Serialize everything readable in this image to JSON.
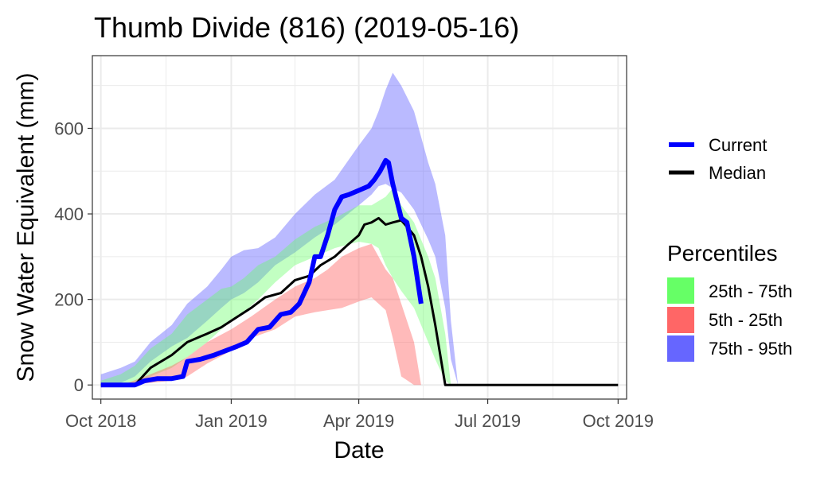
{
  "chart_data": {
    "type": "area",
    "title": "Thumb Divide (816) (2019-05-16)",
    "xlabel": "Date",
    "ylabel": "Snow Water Equivalent (mm)",
    "xlim": [
      "2018-09-25",
      "2019-10-07"
    ],
    "ylim": [
      -33,
      770
    ],
    "x_ticks": [
      {
        "date": "2018-10-01",
        "label": "Oct 2018"
      },
      {
        "date": "2019-01-01",
        "label": "Jan 2019"
      },
      {
        "date": "2019-04-01",
        "label": "Apr 2019"
      },
      {
        "date": "2019-07-01",
        "label": "Jul 2019"
      },
      {
        "date": "2019-10-01",
        "label": "Oct 2019"
      }
    ],
    "y_ticks": [
      0,
      200,
      400,
      600
    ],
    "grid": true,
    "background": "#ffffff",
    "grid_color": "#ebebeb",
    "bands": [
      {
        "name": "75th - 95th",
        "color": "#6666ff",
        "fill_alpha": 0.45,
        "x": [
          "2018-10-01",
          "2018-10-15",
          "2018-10-25",
          "2018-11-05",
          "2018-11-20",
          "2018-12-01",
          "2018-12-15",
          "2018-12-25",
          "2019-01-01",
          "2019-01-10",
          "2019-01-20",
          "2019-02-01",
          "2019-02-15",
          "2019-03-01",
          "2019-03-15",
          "2019-04-01",
          "2019-04-10",
          "2019-04-15",
          "2019-04-20",
          "2019-04-25",
          "2019-05-01",
          "2019-05-10",
          "2019-05-20",
          "2019-05-25",
          "2019-06-01",
          "2019-06-05",
          "2019-06-10"
        ],
        "lower": [
          0,
          5,
          20,
          55,
          90,
          110,
          150,
          180,
          200,
          215,
          240,
          280,
          310,
          345,
          375,
          420,
          445,
          465,
          470,
          460,
          450,
          410,
          340,
          300,
          180,
          60,
          0
        ],
        "upper": [
          25,
          40,
          55,
          100,
          140,
          190,
          230,
          270,
          300,
          315,
          320,
          345,
          400,
          445,
          480,
          560,
          600,
          640,
          690,
          730,
          700,
          640,
          520,
          470,
          350,
          150,
          0
        ]
      },
      {
        "name": "25th - 75th",
        "color": "#66ff66",
        "fill_alpha": 0.4,
        "x": [
          "2018-10-01",
          "2018-10-15",
          "2018-10-25",
          "2018-11-05",
          "2018-11-20",
          "2018-12-01",
          "2018-12-15",
          "2018-12-25",
          "2019-01-01",
          "2019-01-10",
          "2019-01-20",
          "2019-02-01",
          "2019-02-15",
          "2019-03-01",
          "2019-03-15",
          "2019-04-01",
          "2019-04-10",
          "2019-04-15",
          "2019-04-20",
          "2019-04-25",
          "2019-05-01",
          "2019-05-10",
          "2019-05-20",
          "2019-05-25",
          "2019-06-01",
          "2019-06-05"
        ],
        "lower": [
          0,
          0,
          5,
          20,
          40,
          65,
          100,
          130,
          150,
          170,
          200,
          240,
          280,
          300,
          320,
          335,
          330,
          320,
          280,
          250,
          220,
          180,
          100,
          60,
          10,
          0
        ],
        "upper": [
          10,
          25,
          45,
          85,
          120,
          165,
          200,
          225,
          230,
          250,
          280,
          300,
          340,
          370,
          390,
          420,
          420,
          430,
          440,
          460,
          420,
          380,
          300,
          250,
          120,
          0
        ]
      },
      {
        "name": "5th - 25th",
        "color": "#ff6666",
        "fill_alpha": 0.45,
        "x": [
          "2018-10-01",
          "2018-10-20",
          "2018-11-05",
          "2018-11-20",
          "2018-12-01",
          "2018-12-15",
          "2019-01-01",
          "2019-01-15",
          "2019-02-01",
          "2019-02-15",
          "2019-03-01",
          "2019-03-10",
          "2019-03-20",
          "2019-04-01",
          "2019-04-10",
          "2019-04-20",
          "2019-04-25",
          "2019-05-01",
          "2019-05-10",
          "2019-05-15"
        ],
        "lower": [
          0,
          0,
          5,
          10,
          20,
          50,
          80,
          110,
          130,
          160,
          170,
          175,
          180,
          195,
          205,
          175,
          110,
          20,
          0,
          0
        ],
        "upper": [
          0,
          5,
          25,
          45,
          65,
          100,
          130,
          160,
          200,
          230,
          250,
          270,
          300,
          320,
          330,
          270,
          250,
          190,
          100,
          0
        ]
      }
    ],
    "series": [
      {
        "name": "Current",
        "color": "#0000ff",
        "stroke_width": 6,
        "x": [
          "2018-10-01",
          "2018-10-15",
          "2018-10-25",
          "2018-11-01",
          "2018-11-10",
          "2018-11-20",
          "2018-11-28",
          "2018-12-01",
          "2018-12-10",
          "2018-12-20",
          "2018-12-28",
          "2019-01-05",
          "2019-01-12",
          "2019-01-20",
          "2019-01-28",
          "2019-02-05",
          "2019-02-12",
          "2019-02-18",
          "2019-02-25",
          "2019-03-01",
          "2019-03-05",
          "2019-03-10",
          "2019-03-15",
          "2019-03-20",
          "2019-03-25",
          "2019-04-01",
          "2019-04-08",
          "2019-04-12",
          "2019-04-16",
          "2019-04-20",
          "2019-04-22",
          "2019-04-25",
          "2019-05-01",
          "2019-05-05",
          "2019-05-10",
          "2019-05-15"
        ],
        "values": [
          0,
          0,
          0,
          10,
          15,
          15,
          20,
          55,
          60,
          70,
          80,
          90,
          100,
          130,
          135,
          165,
          170,
          190,
          240,
          300,
          300,
          350,
          410,
          440,
          445,
          455,
          465,
          480,
          500,
          525,
          520,
          470,
          390,
          380,
          300,
          190
        ]
      },
      {
        "name": "Median",
        "color": "#000000",
        "stroke_width": 3,
        "x": [
          "2018-10-01",
          "2018-10-15",
          "2018-10-25",
          "2018-11-05",
          "2018-11-20",
          "2018-12-01",
          "2018-12-15",
          "2018-12-25",
          "2019-01-01",
          "2019-01-15",
          "2019-01-25",
          "2019-02-05",
          "2019-02-15",
          "2019-02-25",
          "2019-03-05",
          "2019-03-15",
          "2019-03-25",
          "2019-04-01",
          "2019-04-05",
          "2019-04-10",
          "2019-04-15",
          "2019-04-20",
          "2019-04-25",
          "2019-05-01",
          "2019-05-05",
          "2019-05-10",
          "2019-05-15",
          "2019-05-20",
          "2019-05-25",
          "2019-06-01",
          "2019-10-01"
        ],
        "values": [
          0,
          0,
          0,
          40,
          70,
          100,
          120,
          135,
          150,
          180,
          205,
          215,
          245,
          255,
          280,
          300,
          330,
          350,
          375,
          380,
          390,
          375,
          380,
          385,
          370,
          350,
          300,
          230,
          140,
          0,
          0
        ]
      }
    ],
    "legend": {
      "placement": "right",
      "lines": [
        {
          "name": "Current",
          "color": "#0000ff"
        },
        {
          "name": "Median",
          "color": "#000000"
        }
      ],
      "percentiles_title": "Percentiles",
      "percentiles": [
        {
          "name": "25th - 75th",
          "color": "#66ff66"
        },
        {
          "name": "5th - 25th",
          "color": "#ff6666"
        },
        {
          "name": "75th - 95th",
          "color": "#6666ff"
        }
      ]
    }
  }
}
